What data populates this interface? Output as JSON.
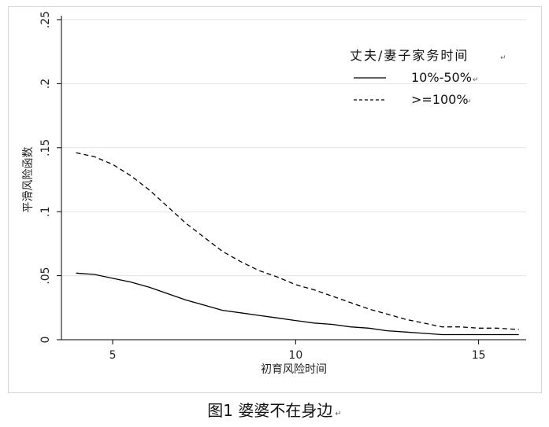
{
  "caption": {
    "text": "图1  婆婆不在身边",
    "para_mark": "↵"
  },
  "chart_data": {
    "type": "line",
    "title": "",
    "xlabel": "初育风险时间",
    "ylabel": "平滑风险函数",
    "xlim": [
      3.6,
      16.3
    ],
    "ylim": [
      0,
      0.25
    ],
    "x_ticks": [
      5,
      10,
      15
    ],
    "y_ticks": [
      0,
      0.05,
      0.1,
      0.15,
      0.2,
      0.25
    ],
    "y_tick_labels": [
      "0",
      ".05",
      ".1",
      ".15",
      ".2",
      ".25"
    ],
    "grid": true,
    "legend": {
      "title": "丈夫/妻子家务时间",
      "position": "top-right",
      "para_mark": "↵"
    },
    "series": [
      {
        "name": "10%-50%",
        "style": "solid",
        "color": "#000000",
        "x": [
          4,
          4.5,
          5,
          5.5,
          6,
          6.5,
          7,
          7.5,
          8,
          8.5,
          9,
          9.5,
          10,
          10.5,
          11,
          11.5,
          12,
          12.5,
          13,
          13.5,
          14,
          14.5,
          15,
          15.5,
          16.1
        ],
        "y": [
          0.052,
          0.051,
          0.048,
          0.045,
          0.041,
          0.036,
          0.031,
          0.027,
          0.023,
          0.021,
          0.019,
          0.017,
          0.015,
          0.013,
          0.012,
          0.01,
          0.009,
          0.007,
          0.006,
          0.005,
          0.004,
          0.004,
          0.004,
          0.004,
          0.004
        ]
      },
      {
        "name": ">=100%",
        "style": "dashed",
        "color": "#000000",
        "x": [
          4,
          4.5,
          5,
          5.5,
          6,
          6.5,
          7,
          7.5,
          8,
          8.5,
          9,
          9.5,
          10,
          10.5,
          11,
          11.5,
          12,
          12.5,
          13,
          13.5,
          14,
          14.5,
          15,
          15.5,
          16.1
        ],
        "y": [
          0.146,
          0.143,
          0.137,
          0.128,
          0.117,
          0.104,
          0.091,
          0.08,
          0.069,
          0.061,
          0.054,
          0.049,
          0.043,
          0.039,
          0.034,
          0.029,
          0.024,
          0.02,
          0.016,
          0.013,
          0.01,
          0.01,
          0.009,
          0.009,
          0.008
        ]
      }
    ]
  }
}
